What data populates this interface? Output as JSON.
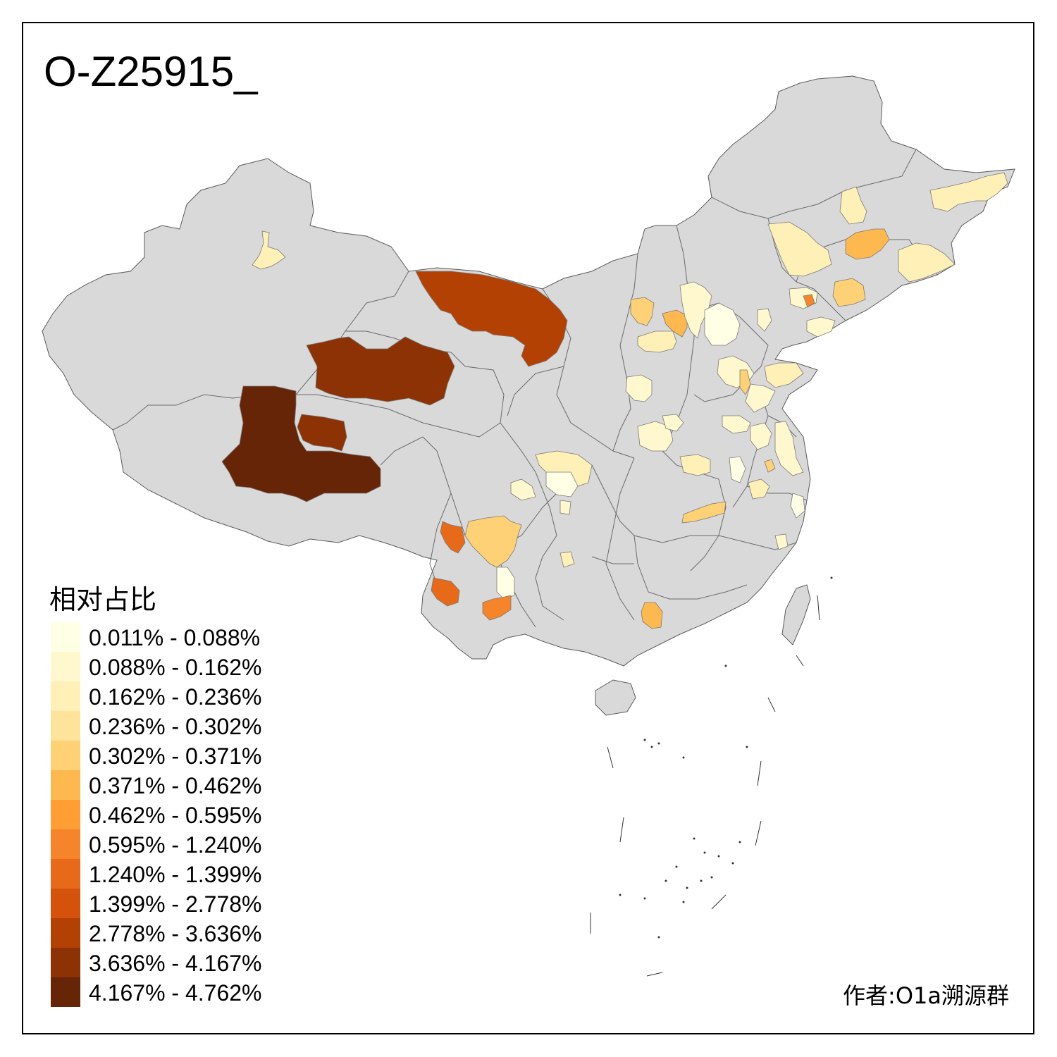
{
  "title": "O-Z25915_",
  "legend": {
    "title": "相对占比",
    "items": [
      {
        "label": "0.011% - 0.088%",
        "color": "#ffffe5"
      },
      {
        "label": "0.088% - 0.162%",
        "color": "#fff8cf"
      },
      {
        "label": "0.162% - 0.236%",
        "color": "#fff0b8"
      },
      {
        "label": "0.236% - 0.302%",
        "color": "#fee39b"
      },
      {
        "label": "0.302% - 0.371%",
        "color": "#fed176"
      },
      {
        "label": "0.371% - 0.462%",
        "color": "#feb850"
      },
      {
        "label": "0.462% - 0.595%",
        "color": "#fe9e34"
      },
      {
        "label": "0.595% - 1.240%",
        "color": "#f5842a"
      },
      {
        "label": "1.240% - 1.399%",
        "color": "#e76a1a"
      },
      {
        "label": "1.399% - 2.778%",
        "color": "#d4520c"
      },
      {
        "label": "2.778% - 3.636%",
        "color": "#b44104"
      },
      {
        "label": "3.636% - 4.167%",
        "color": "#8c3204"
      },
      {
        "label": "4.167% - 4.762%",
        "color": "#662506"
      }
    ]
  },
  "author": "作者:O1a溯源群",
  "map_colors": {
    "base": "#d9d9d9",
    "border": "#5a5a5a"
  }
}
